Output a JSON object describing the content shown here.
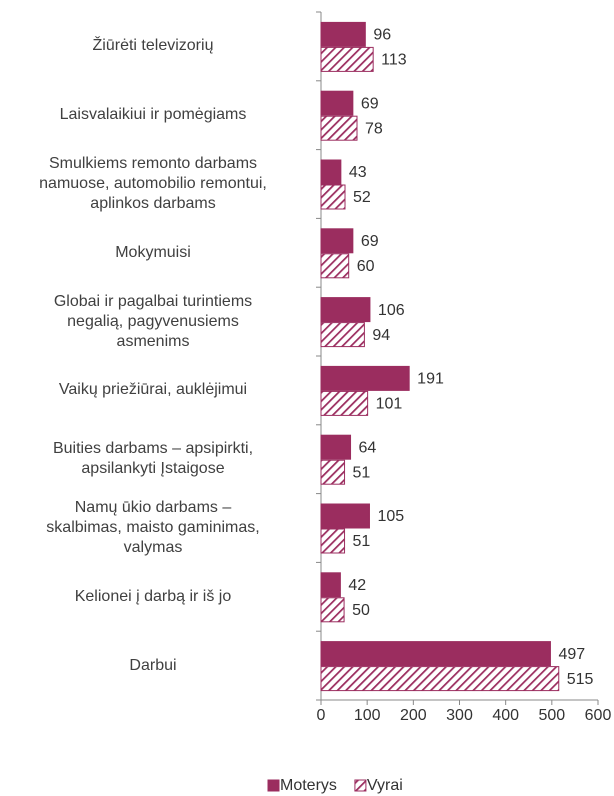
{
  "chart_data": {
    "type": "barh",
    "categories": [
      "Žiūrėti televizorių",
      "Laisvalaikiui ir pomėgiams",
      "Smulkiems remonto darbams\nnamuose, automobilio remontui,\naplinkos darbams",
      "Mokymuisi",
      "Globai ir pagalbai turintiems\nnegalią, pagyvenusiems\nasmenims",
      "Vaikų priežiūrai, auklėjimui",
      "Buities darbams – apsipirkti,\napsilankyti Įstaigose",
      "Namų ūkio darbams –\nskalbimas, maisto gaminimas,\nvalymas",
      "Kelionei į darbą ir iš jo",
      "Darbui"
    ],
    "series": [
      {
        "name": "Moterys",
        "color": "#9b2d5f",
        "values": [
          96,
          69,
          43,
          69,
          106,
          191,
          64,
          105,
          42,
          497
        ]
      },
      {
        "name": "Vyrai",
        "color": "#9b2d5f",
        "hatch": true,
        "values": [
          113,
          78,
          52,
          60,
          94,
          101,
          51,
          51,
          50,
          515
        ]
      }
    ],
    "xlim": [
      0,
      600
    ],
    "xticks": [
      0,
      100,
      200,
      300,
      400,
      500,
      600
    ],
    "legend": "bottom"
  }
}
